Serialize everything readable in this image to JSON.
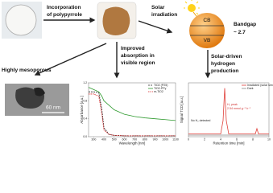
{
  "labels": {
    "incorporation": [
      "Incorporation",
      "of polypyrrole"
    ],
    "solar": [
      "Solar",
      "irradiation"
    ],
    "cb": "CB",
    "vb": "VB",
    "bandgap": [
      "Bandgap",
      "~ 2.7"
    ],
    "mesoporous": "Highly mesoporous",
    "absorption": [
      "Improved",
      "absorption in",
      "visible region"
    ],
    "hydrogen": [
      "Solar-driven",
      "hydrogen",
      "production"
    ],
    "scale": "60 nm"
  },
  "absorbance_chart": {
    "type": "line",
    "x_label": "Wavelength [nm]",
    "y_label": "Absorbance [a.u.]",
    "x": [
      250,
      300,
      350,
      380,
      400,
      450,
      500,
      600,
      700,
      800,
      900,
      1000,
      1100
    ],
    "series": [
      {
        "name": "TiO2 (P25)",
        "color": "#222222",
        "values": [
          1.0,
          1.0,
          0.98,
          0.6,
          0.2,
          0.05,
          0.03,
          0.02,
          0.02,
          0.02,
          0.02,
          0.02,
          0.02
        ]
      },
      {
        "name": "TiO2-PPy",
        "color": "#2e9a2e",
        "values": [
          1.1,
          1.05,
          1.0,
          0.9,
          0.8,
          0.7,
          0.6,
          0.5,
          0.45,
          0.42,
          0.4,
          0.38,
          0.36
        ]
      },
      {
        "name": "m-TiO2",
        "color": "#d62020",
        "values": [
          0.95,
          0.95,
          0.9,
          0.5,
          0.15,
          0.05,
          0.03,
          0.02,
          0.02,
          0.02,
          0.02,
          0.02,
          0.02
        ]
      }
    ],
    "xlim": [
      250,
      1100
    ],
    "ylim": [
      0,
      1.2
    ],
    "xticks": [
      300,
      400,
      500,
      600,
      700,
      800,
      900,
      1000,
      1100
    ],
    "yticks": [
      {
        "value": 0,
        "label": "0.0"
      },
      {
        "value": 0.4,
        "label": "0.4"
      },
      {
        "value": 0.8,
        "label": "0.8"
      },
      {
        "value": 1.2,
        "label": "1.2"
      }
    ]
  },
  "chromatogram": {
    "type": "line",
    "x_label": "Retention time [min]",
    "y_label": "Signal TCD [a.u.]",
    "annotations": [
      "H₂ peak",
      "2.54 mmol g⁻¹ h⁻¹",
      "No H₂ detected"
    ],
    "x": [
      0,
      4,
      4.3,
      4.5,
      4.7,
      5,
      8.3,
      8.5,
      8.7,
      10
    ],
    "series": [
      {
        "name": "Irradiated (solar simulator)",
        "color": "#e0403a",
        "values": [
          0.05,
          0.05,
          0.3,
          0.9,
          0.3,
          0.05,
          0.05,
          0.15,
          0.05,
          0.05
        ]
      },
      {
        "name": "Dark",
        "color": "#888888",
        "values": [
          0.03,
          0.03,
          0.03,
          0.03,
          0.03,
          0.03,
          0.03,
          0.03,
          0.03,
          0.03
        ]
      }
    ],
    "xlim": [
      0,
      10
    ],
    "ylim": [
      0,
      1
    ],
    "xticks": [
      0,
      2,
      4,
      6,
      8,
      10
    ]
  }
}
